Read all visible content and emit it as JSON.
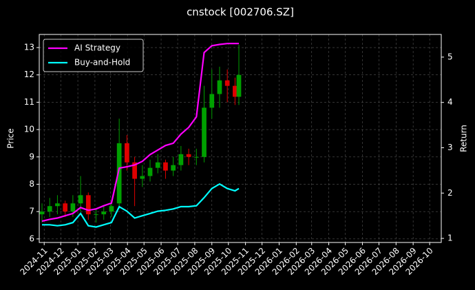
{
  "chart_data": {
    "type": "candlestick",
    "title": "cnstock [002706.SZ]",
    "ylabel": "Price",
    "y2label": "Return",
    "x": [
      "2024-10-28",
      "2024-11-11",
      "2024-11-25",
      "2024-12-09",
      "2024-12-23",
      "2025-01-06",
      "2025-01-20",
      "2025-02-03",
      "2025-02-17",
      "2025-03-03",
      "2025-03-17",
      "2025-03-31",
      "2025-04-14",
      "2025-04-28",
      "2025-05-12",
      "2025-05-26",
      "2025-06-09",
      "2025-06-23",
      "2025-07-07",
      "2025-07-21",
      "2025-08-04",
      "2025-08-18",
      "2025-09-01",
      "2025-09-15",
      "2025-09-29",
      "2025-10-13",
      "2025-10-20"
    ],
    "open": [
      6.9,
      7.0,
      7.2,
      7.3,
      7.0,
      7.3,
      7.6,
      6.9,
      6.9,
      7.0,
      7.3,
      9.5,
      8.8,
      8.2,
      8.3,
      8.6,
      8.8,
      8.5,
      8.7,
      9.1,
      9.0,
      9.0,
      10.8,
      11.3,
      11.8,
      11.6,
      11.2
    ],
    "high": [
      7.3,
      7.5,
      7.6,
      7.4,
      7.6,
      8.3,
      7.7,
      7.1,
      7.2,
      7.4,
      10.4,
      9.8,
      9.0,
      8.7,
      8.9,
      9.1,
      8.9,
      9.0,
      9.4,
      9.3,
      9.3,
      11.6,
      12.2,
      12.3,
      12.2,
      11.9,
      13.1
    ],
    "low": [
      6.6,
      6.8,
      6.9,
      6.8,
      6.8,
      7.0,
      6.7,
      6.6,
      6.7,
      6.8,
      7.1,
      8.5,
      7.2,
      7.9,
      8.1,
      8.4,
      8.2,
      8.3,
      8.5,
      8.7,
      8.7,
      8.8,
      10.4,
      10.8,
      11.0,
      10.9,
      10.9
    ],
    "close": [
      7.0,
      7.2,
      7.3,
      7.0,
      7.3,
      7.6,
      6.9,
      6.9,
      7.0,
      7.2,
      9.5,
      8.8,
      8.2,
      8.3,
      8.6,
      8.8,
      8.5,
      8.7,
      9.1,
      9.0,
      9.0,
      10.8,
      11.3,
      11.8,
      11.6,
      11.2,
      12.0
    ],
    "up_color": "#00a000",
    "down_color": "#e00000",
    "series": [
      {
        "name": "AI Strategy",
        "color": "#ff00ff",
        "axis": "y2",
        "values": [
          1.38,
          1.42,
          1.45,
          1.5,
          1.55,
          1.68,
          1.62,
          1.65,
          1.72,
          1.78,
          2.55,
          2.58,
          2.62,
          2.7,
          2.85,
          2.95,
          3.05,
          3.1,
          3.3,
          3.45,
          3.68,
          5.1,
          5.25,
          5.28,
          5.3,
          5.3,
          5.3
        ]
      },
      {
        "name": "Buy-and-Hold",
        "color": "#00ffff",
        "axis": "y2",
        "values": [
          1.3,
          1.3,
          1.28,
          1.3,
          1.35,
          1.55,
          1.28,
          1.25,
          1.3,
          1.35,
          1.7,
          1.6,
          1.45,
          1.5,
          1.55,
          1.6,
          1.62,
          1.65,
          1.7,
          1.7,
          1.72,
          1.9,
          2.1,
          2.2,
          2.1,
          2.05,
          2.1
        ]
      }
    ],
    "xlim": [
      "2024-10-23",
      "2026-10-22"
    ],
    "xticks": [
      "2024-11",
      "2024-12",
      "2025-01",
      "2025-02",
      "2025-03",
      "2025-04",
      "2025-05",
      "2025-06",
      "2025-07",
      "2025-08",
      "2025-09",
      "2025-10",
      "2025-11",
      "2025-12",
      "2026-01",
      "2026-02",
      "2026-03",
      "2026-04",
      "2026-05",
      "2026-06",
      "2026-07",
      "2026-08",
      "2026-09",
      "2026-10"
    ],
    "ylim": [
      5.87,
      13.48
    ],
    "yticks": [
      6,
      7,
      8,
      9,
      10,
      11,
      12,
      13
    ],
    "y2lim": [
      0.91,
      5.5
    ],
    "y2ticks": [
      1,
      2,
      3,
      4,
      5
    ],
    "grid": true,
    "legend": "upper left"
  }
}
